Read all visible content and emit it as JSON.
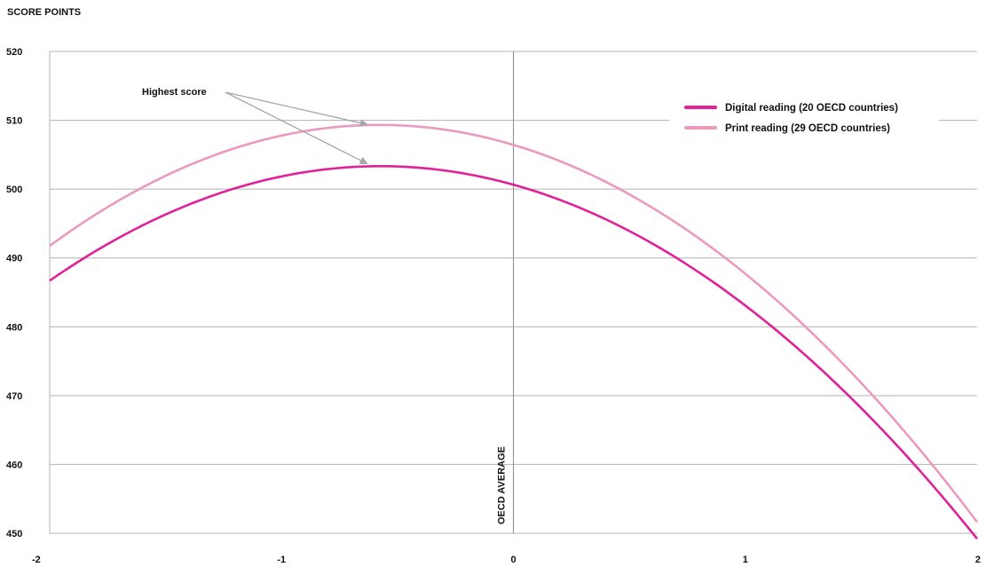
{
  "chart_data": {
    "type": "line",
    "ylabel": "SCORE POINTS",
    "xlabel": "",
    "xlim": [
      -2,
      2
    ],
    "ylim": [
      450,
      520
    ],
    "xticks": [
      "-2",
      "-1",
      "0",
      "1",
      "2"
    ],
    "yticks": [
      "450",
      "460",
      "470",
      "480",
      "490",
      "500",
      "510",
      "520"
    ],
    "grid": "horizontal",
    "legend_position": "top-right",
    "reference_line": {
      "x": 0,
      "label": "OECD AVERAGE"
    },
    "annotation": {
      "text": "Highest score"
    },
    "series": [
      {
        "name": "Digital reading (20 OECD countries)",
        "color": "#e0219a",
        "x": [
          -2.0,
          -1.5,
          -1.0,
          -0.63,
          -0.5,
          0.0,
          0.5,
          1.0,
          1.5,
          2.0
        ],
        "y": [
          486.6,
          496.6,
          501.9,
          503.3,
          503.0,
          500.4,
          494.0,
          483.4,
          468.3,
          449.0
        ],
        "peak": {
          "x": -0.63,
          "y": 503.3
        }
      },
      {
        "name": "Print reading (29 OECD countries)",
        "color": "#eb9abd",
        "x": [
          -2.0,
          -1.5,
          -1.0,
          -0.63,
          -0.5,
          0.0,
          0.5,
          1.0,
          1.5,
          2.0
        ],
        "y": [
          491.9,
          502.3,
          507.7,
          509.0,
          508.8,
          505.9,
          499.3,
          488.5,
          473.0,
          450.5
        ],
        "peak": {
          "x": -0.63,
          "y": 509.0
        }
      }
    ]
  }
}
